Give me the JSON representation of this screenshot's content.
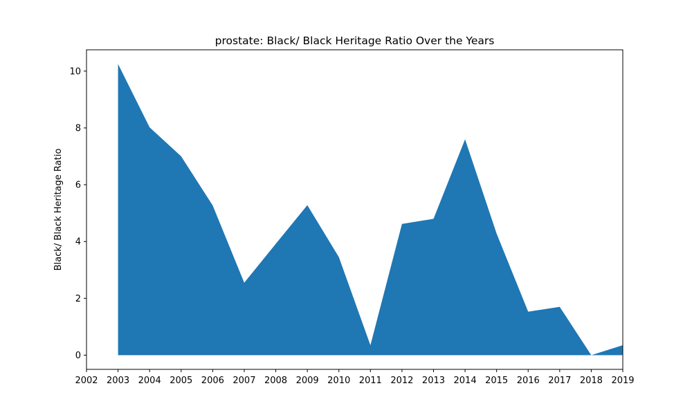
{
  "chart_data": {
    "type": "area",
    "title": "prostate: Black/ Black Heritage Ratio Over the Years",
    "xlabel": "",
    "ylabel": "Black/ Black Heritage Ratio",
    "x": [
      2003,
      2004,
      2005,
      2006,
      2007,
      2008,
      2009,
      2010,
      2011,
      2012,
      2013,
      2014,
      2015,
      2016,
      2017,
      2018,
      2019
    ],
    "series": [
      {
        "values": [
          10.25,
          8.02,
          7.0,
          5.27,
          2.55,
          3.92,
          5.28,
          3.45,
          0.35,
          4.62,
          4.8,
          7.6,
          4.28,
          1.53,
          1.7,
          0.0,
          0.35
        ]
      }
    ],
    "xlim": [
      2002,
      2019
    ],
    "ylim": [
      -0.5,
      10.75
    ],
    "xticks": [
      2002,
      2003,
      2004,
      2005,
      2006,
      2007,
      2008,
      2009,
      2010,
      2011,
      2012,
      2013,
      2014,
      2015,
      2016,
      2017,
      2018,
      2019
    ],
    "yticks": [
      0,
      2,
      4,
      6,
      8,
      10
    ],
    "grid": false,
    "color": "#1f77b4"
  }
}
